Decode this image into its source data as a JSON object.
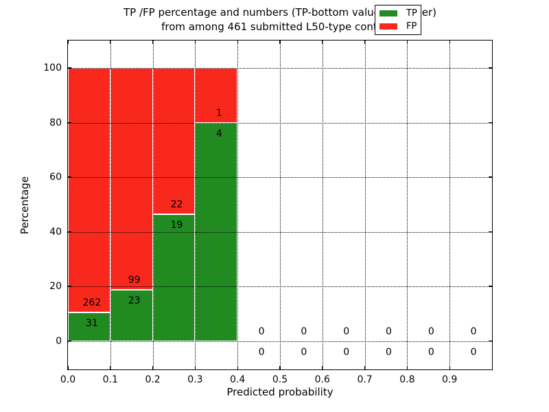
{
  "chart_data": {
    "type": "bar",
    "stacked": true,
    "title_line1": "TP /FP percentage and numbers (TP-bottom value, FP-upper)",
    "title_line2": "from among 461 submitted L50-type contacts",
    "xlabel": "Predicted probability",
    "ylabel": "Percentage",
    "total_submitted": 461,
    "xlim": [
      0.0,
      1.0
    ],
    "ylim": [
      -10.4,
      110.1
    ],
    "xtick_values": [
      0.0,
      0.1,
      0.2,
      0.3,
      0.4,
      0.5,
      0.6,
      0.7,
      0.8,
      0.9
    ],
    "xtick_labels": [
      "0.0",
      "0.1",
      "0.2",
      "0.3",
      "0.4",
      "0.5",
      "0.6",
      "0.7",
      "0.8",
      "0.9"
    ],
    "ytick_values": [
      0,
      20,
      40,
      60,
      80,
      100
    ],
    "ytick_labels": [
      "0",
      "20",
      "40",
      "60",
      "80",
      "100"
    ],
    "grid": true,
    "bin_width": 0.1,
    "bins": [
      {
        "range": [
          0.0,
          0.1
        ],
        "tp_count": 31,
        "fp_count": 262,
        "tp_pct": 10.58,
        "fp_pct": 89.42
      },
      {
        "range": [
          0.1,
          0.2
        ],
        "tp_count": 23,
        "fp_count": 99,
        "tp_pct": 18.85,
        "fp_pct": 81.15
      },
      {
        "range": [
          0.2,
          0.3
        ],
        "tp_count": 19,
        "fp_count": 22,
        "tp_pct": 46.34,
        "fp_pct": 53.66
      },
      {
        "range": [
          0.3,
          0.4
        ],
        "tp_count": 4,
        "fp_count": 1,
        "tp_pct": 80.0,
        "fp_pct": 20.0
      },
      {
        "range": [
          0.4,
          0.5
        ],
        "tp_count": 0,
        "fp_count": 0,
        "tp_pct": 0,
        "fp_pct": 0
      },
      {
        "range": [
          0.5,
          0.6
        ],
        "tp_count": 0,
        "fp_count": 0,
        "tp_pct": 0,
        "fp_pct": 0
      },
      {
        "range": [
          0.6,
          0.7
        ],
        "tp_count": 0,
        "fp_count": 0,
        "tp_pct": 0,
        "fp_pct": 0
      },
      {
        "range": [
          0.7,
          0.8
        ],
        "tp_count": 0,
        "fp_count": 0,
        "tp_pct": 0,
        "fp_pct": 0
      },
      {
        "range": [
          0.8,
          0.9
        ],
        "tp_count": 0,
        "fp_count": 0,
        "tp_pct": 0,
        "fp_pct": 0
      },
      {
        "range": [
          0.9,
          1.0
        ],
        "tp_count": 0,
        "fp_count": 0,
        "tp_pct": 0,
        "fp_pct": 0
      }
    ],
    "legend": {
      "position": "upper right",
      "entries": [
        {
          "label": "TP",
          "color": "#218a21"
        },
        {
          "label": "FP",
          "color": "#f9281d"
        }
      ]
    },
    "colors": {
      "tp": "#218a21",
      "fp": "#f9281d",
      "grid": "#000000",
      "axis": "#000000",
      "background": "#ffffff",
      "bar_edge": "#ffffff",
      "text": "#000000"
    }
  }
}
